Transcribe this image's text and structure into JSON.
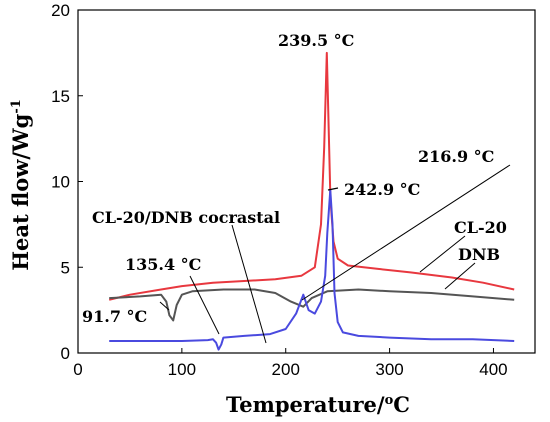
{
  "chart_data": {
    "type": "line",
    "xlabel": "Temperature/",
    "xlabel_unit": "°C",
    "xlabel_sup": "o",
    "xlabel_tail": "C",
    "ylabel": "Heat flow/Wg",
    "ylabel_sup": "-1",
    "xlim": [
      0,
      440
    ],
    "ylim": [
      0,
      20
    ],
    "x_ticks": [
      "0",
      "100",
      "200",
      "300",
      "400"
    ],
    "y_ticks": [
      "0",
      "5",
      "10",
      "15",
      "20"
    ],
    "grid": false,
    "series": [
      {
        "name": "CL-20",
        "color": "#e8383f",
        "points": [
          [
            30,
            3.1
          ],
          [
            50,
            3.4
          ],
          [
            80,
            3.7
          ],
          [
            100,
            3.9
          ],
          [
            130,
            4.1
          ],
          [
            160,
            4.2
          ],
          [
            190,
            4.3
          ],
          [
            215,
            4.5
          ],
          [
            228,
            5.0
          ],
          [
            234,
            7.5
          ],
          [
            237,
            12.0
          ],
          [
            239.5,
            17.5
          ],
          [
            241,
            14.0
          ],
          [
            243,
            9.0
          ],
          [
            246,
            6.5
          ],
          [
            250,
            5.5
          ],
          [
            260,
            5.1
          ],
          [
            290,
            4.9
          ],
          [
            320,
            4.7
          ],
          [
            360,
            4.4
          ],
          [
            390,
            4.1
          ],
          [
            420,
            3.7
          ]
        ]
      },
      {
        "name": "DNB",
        "color": "#555555",
        "points": [
          [
            30,
            3.2
          ],
          [
            60,
            3.3
          ],
          [
            80,
            3.4
          ],
          [
            85,
            3.0
          ],
          [
            88,
            2.2
          ],
          [
            91.7,
            1.9
          ],
          [
            95,
            2.8
          ],
          [
            100,
            3.4
          ],
          [
            110,
            3.6
          ],
          [
            140,
            3.7
          ],
          [
            170,
            3.7
          ],
          [
            190,
            3.5
          ],
          [
            205,
            3.0
          ],
          [
            216.9,
            2.7
          ],
          [
            225,
            3.2
          ],
          [
            240,
            3.6
          ],
          [
            270,
            3.7
          ],
          [
            300,
            3.6
          ],
          [
            340,
            3.5
          ],
          [
            380,
            3.3
          ],
          [
            420,
            3.1
          ]
        ]
      },
      {
        "name": "CL-20/DNB cocrastal",
        "color": "#4a4adf",
        "points": [
          [
            30,
            0.7
          ],
          [
            60,
            0.7
          ],
          [
            100,
            0.7
          ],
          [
            125,
            0.75
          ],
          [
            130,
            0.8
          ],
          [
            133,
            0.6
          ],
          [
            135.4,
            0.2
          ],
          [
            138,
            0.5
          ],
          [
            140,
            0.9
          ],
          [
            160,
            1.0
          ],
          [
            185,
            1.1
          ],
          [
            200,
            1.4
          ],
          [
            210,
            2.3
          ],
          [
            216.9,
            3.4
          ],
          [
            222,
            2.5
          ],
          [
            228,
            2.3
          ],
          [
            234,
            3.0
          ],
          [
            238,
            4.5
          ],
          [
            240,
            7.0
          ],
          [
            242.9,
            9.5
          ],
          [
            245,
            7.5
          ],
          [
            247,
            3.5
          ],
          [
            250,
            1.8
          ],
          [
            255,
            1.2
          ],
          [
            270,
            1.0
          ],
          [
            300,
            0.9
          ],
          [
            340,
            0.8
          ],
          [
            380,
            0.8
          ],
          [
            420,
            0.7
          ]
        ]
      }
    ],
    "annotations": {
      "peak_239": "239.5 °C",
      "peak_242": "242.9 °C",
      "peak_216": "216.9 °C",
      "peak_135": "135.4 °C",
      "peak_91": "91.7 °C",
      "label_cocrystal": "CL-20/DNB cocrastal",
      "label_cl20": "CL-20",
      "label_dnb": "DNB"
    }
  }
}
